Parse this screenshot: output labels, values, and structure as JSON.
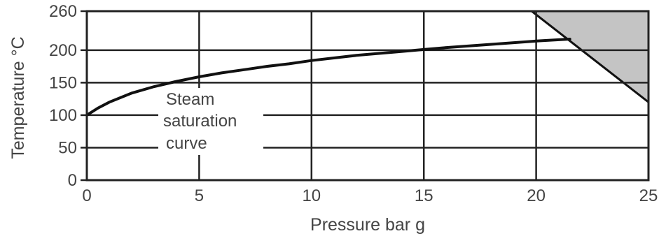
{
  "chart_data": {
    "type": "line",
    "title": "",
    "xlabel": "Pressure bar g",
    "ylabel": "Temperature °C",
    "xlim": [
      0,
      25
    ],
    "ylim": [
      0,
      260
    ],
    "x_ticks": [
      0,
      5,
      10,
      15,
      20,
      25
    ],
    "y_ticks": [
      0,
      50,
      100,
      150,
      200,
      260
    ],
    "grid": true,
    "series": [
      {
        "name": "Steam saturation curve",
        "x": [
          0,
          0.5,
          1,
          2,
          3,
          4,
          5,
          6,
          7,
          8,
          9,
          10,
          12,
          14,
          15,
          16,
          18,
          20,
          21.5
        ],
        "y": [
          100,
          111,
          120,
          134,
          144,
          152,
          159,
          165,
          170,
          175,
          179,
          184,
          192,
          198,
          201,
          204,
          209,
          214,
          217
        ]
      }
    ],
    "shaded_region": {
      "polygon": [
        [
          19.8,
          260
        ],
        [
          25,
          260
        ],
        [
          25,
          120
        ]
      ],
      "color": "#c4c4c4"
    },
    "annotation": {
      "lines": [
        "Steam",
        "saturation",
        "curve"
      ],
      "x": 3.5,
      "y": 120
    },
    "colors": {
      "axis_text": "#444444",
      "grid": "#222222",
      "curve": "#111111",
      "shade": "#c4c4c4"
    }
  }
}
